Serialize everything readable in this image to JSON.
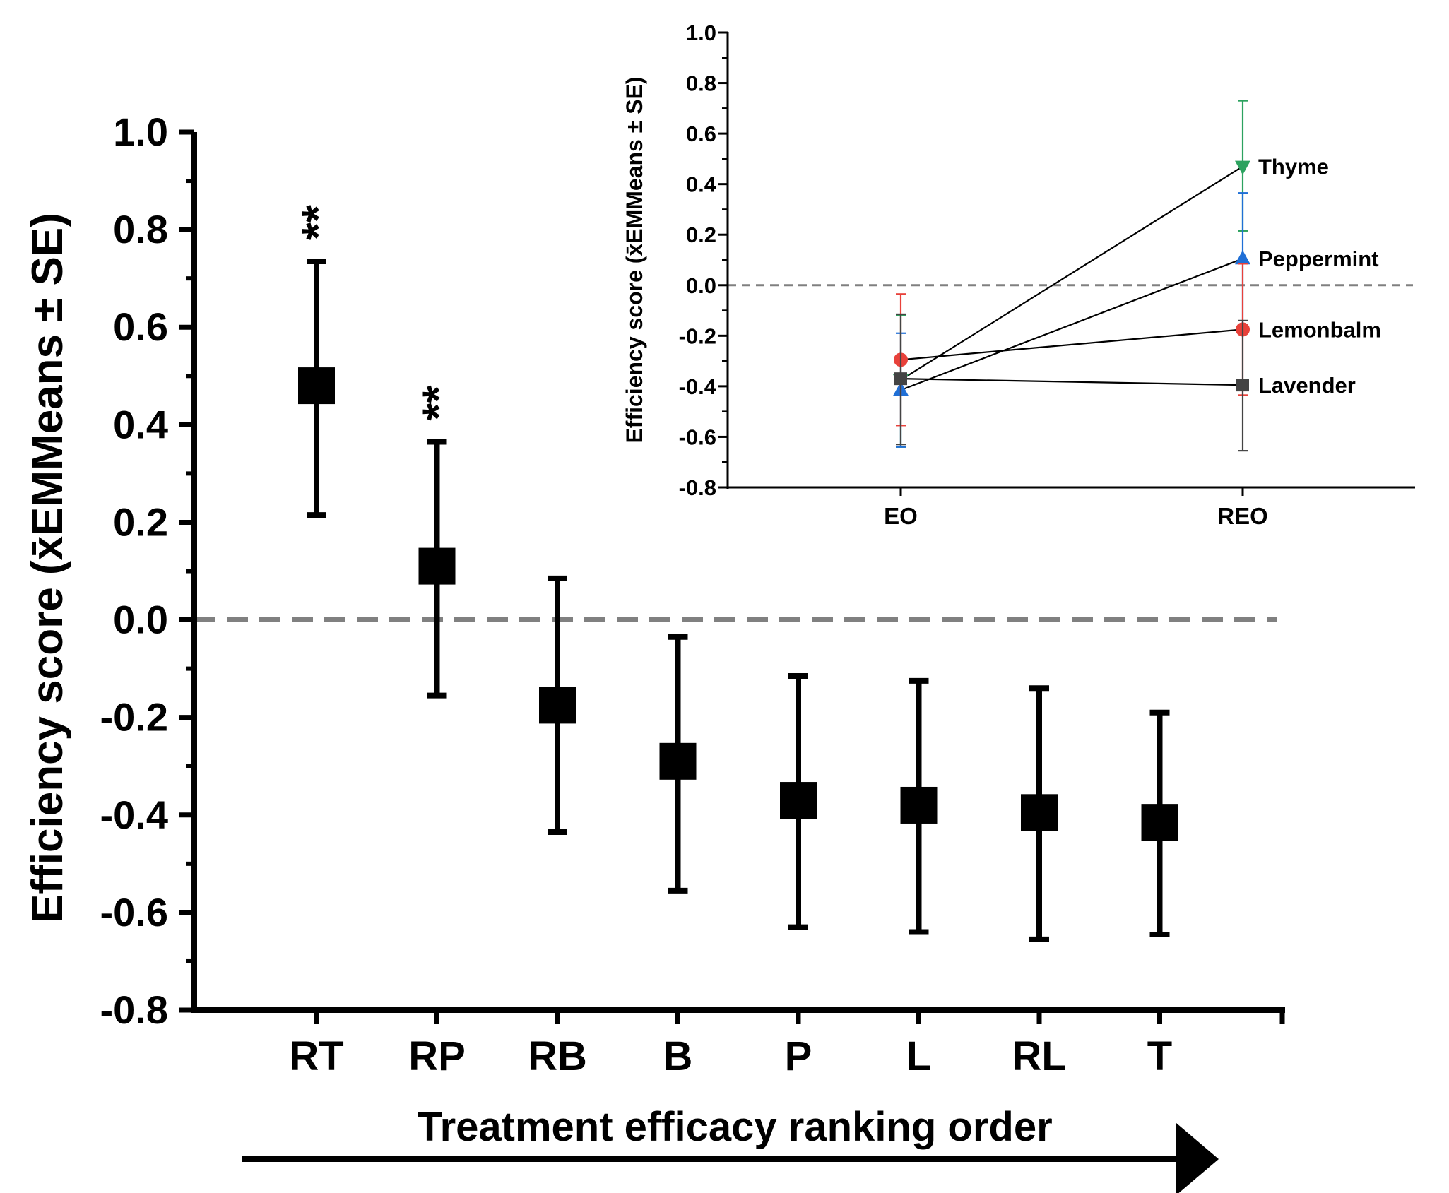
{
  "chart_data": [
    {
      "type": "scatter",
      "title": "",
      "xlabel": "Treatment efficacy ranking order",
      "ylabel": "Efficiency score (x̄EMMeans ± SE)",
      "ylim": [
        -0.8,
        1.0
      ],
      "yticks": [
        "1.0",
        "0.8",
        "0.6",
        "0.4",
        "0.2",
        "0.0",
        "-0.2",
        "-0.4",
        "-0.6",
        "-0.8"
      ],
      "categories": [
        "RT",
        "RP",
        "RB",
        "B",
        "P",
        "L",
        "RL",
        "T"
      ],
      "values": [
        0.48,
        0.11,
        -0.175,
        -0.29,
        -0.37,
        -0.38,
        -0.395,
        -0.415
      ],
      "se_upper": [
        0.735,
        0.365,
        0.085,
        -0.035,
        -0.115,
        -0.125,
        -0.14,
        -0.19
      ],
      "se_lower": [
        0.215,
        -0.155,
        -0.435,
        -0.555,
        -0.63,
        -0.64,
        -0.655,
        -0.645
      ],
      "annotations": [
        "**",
        "**",
        "",
        "",
        "",
        "",
        "",
        ""
      ],
      "reference_line": 0.0,
      "marker": "square",
      "color": "#000000",
      "reference_line_color": "#808080",
      "grid": false
    },
    {
      "type": "line",
      "title": "",
      "xlabel": "",
      "ylabel": "Efficiency score (x̄EMMeans ± SE)",
      "ylim": [
        -0.8,
        1.0
      ],
      "yticks": [
        "1.0",
        "0.8",
        "0.6",
        "0.4",
        "0.2",
        "0.0",
        "-0.2",
        "-0.4",
        "-0.6",
        "-0.8"
      ],
      "categories": [
        "EO",
        "REO"
      ],
      "reference_line": 0.0,
      "grid": false,
      "legend": "direct labels at right of series",
      "series": [
        {
          "name": "Thyme",
          "values": [
            -0.375,
            0.47
          ],
          "se_upper": [
            -0.12,
            0.73
          ],
          "se_lower": [
            -0.64,
            0.215
          ],
          "color": "#2ca25f",
          "marker": "triangle-down"
        },
        {
          "name": "Peppermint",
          "values": [
            -0.415,
            0.105
          ],
          "se_upper": [
            -0.19,
            0.365
          ],
          "se_lower": [
            -0.64,
            -0.155
          ],
          "color": "#1f6fd6",
          "marker": "triangle-up"
        },
        {
          "name": "Lemonbalm",
          "values": [
            -0.295,
            -0.175
          ],
          "se_upper": [
            -0.035,
            0.085
          ],
          "se_lower": [
            -0.555,
            -0.435
          ],
          "color": "#e8413a",
          "marker": "circle"
        },
        {
          "name": "Lavender",
          "values": [
            -0.37,
            -0.395
          ],
          "se_upper": [
            -0.115,
            -0.14
          ],
          "se_lower": [
            -0.63,
            -0.655
          ],
          "color": "#444444",
          "marker": "square"
        }
      ]
    }
  ]
}
